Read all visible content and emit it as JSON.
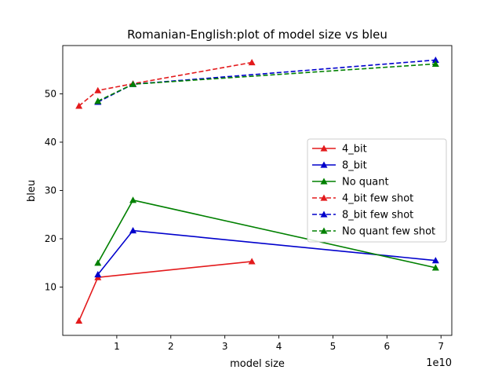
{
  "chart_data": {
    "type": "line",
    "title": "Romanian-English:plot of model size vs bleu",
    "xlabel": "model size",
    "ylabel": "bleu",
    "x_offset_label": "1e10",
    "xlim": [
      0.0,
      7.2
    ],
    "ylim": [
      0,
      60
    ],
    "x_ticks": [
      1,
      2,
      3,
      4,
      5,
      6,
      7
    ],
    "x_tick_labels": [
      "1",
      "2",
      "3",
      "4",
      "5",
      "6",
      "7"
    ],
    "y_ticks": [
      10,
      20,
      30,
      40,
      50
    ],
    "y_tick_labels": [
      "10",
      "20",
      "30",
      "40",
      "50"
    ],
    "grid": false,
    "legend_position": "center-right",
    "x": [
      0.3,
      0.65,
      1.3,
      3.5,
      6.9
    ],
    "series": [
      {
        "name": "4_bit",
        "color": "#e31a1c",
        "dash": false,
        "marker": "triangle",
        "points": [
          [
            0.3,
            3.0
          ],
          [
            0.65,
            12.0
          ],
          [
            3.5,
            15.3
          ]
        ]
      },
      {
        "name": "8_bit",
        "color": "#0000cc",
        "dash": false,
        "marker": "triangle",
        "points": [
          [
            0.65,
            12.6
          ],
          [
            1.3,
            21.7
          ],
          [
            6.9,
            15.5
          ]
        ]
      },
      {
        "name": "No quant",
        "color": "#008000",
        "dash": false,
        "marker": "triangle",
        "points": [
          [
            0.65,
            15.0
          ],
          [
            1.3,
            28.0
          ],
          [
            6.9,
            14.0
          ]
        ]
      },
      {
        "name": "4_bit few shot",
        "color": "#e31a1c",
        "dash": true,
        "marker": "triangle",
        "points": [
          [
            0.3,
            47.5
          ],
          [
            0.65,
            50.7
          ],
          [
            1.3,
            52.1
          ],
          [
            3.5,
            56.5
          ]
        ]
      },
      {
        "name": "8_bit few shot",
        "color": "#0000cc",
        "dash": true,
        "marker": "triangle",
        "points": [
          [
            0.65,
            48.3
          ],
          [
            1.3,
            52.0
          ],
          [
            6.9,
            57.0
          ]
        ]
      },
      {
        "name": "No quant few shot",
        "color": "#008000",
        "dash": true,
        "marker": "triangle",
        "points": [
          [
            0.65,
            48.5
          ],
          [
            1.3,
            52.0
          ],
          [
            6.9,
            56.2
          ]
        ]
      }
    ]
  }
}
